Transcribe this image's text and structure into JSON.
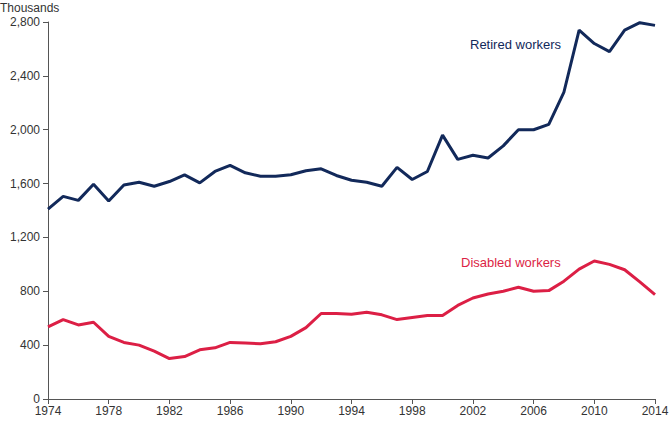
{
  "chart_data": {
    "type": "line",
    "ylabel": "Thousands",
    "x": [
      1974,
      1975,
      1976,
      1977,
      1978,
      1979,
      1980,
      1981,
      1982,
      1983,
      1984,
      1985,
      1986,
      1987,
      1988,
      1989,
      1990,
      1991,
      1992,
      1993,
      1994,
      1995,
      1996,
      1997,
      1998,
      1999,
      2000,
      2001,
      2002,
      2003,
      2004,
      2005,
      2006,
      2007,
      2008,
      2009,
      2010,
      2011,
      2012,
      2013,
      2014
    ],
    "series": [
      {
        "name": "Retired workers",
        "color": "#12295a",
        "values": [
          1410,
          1505,
          1475,
          1595,
          1470,
          1590,
          1610,
          1580,
          1615,
          1665,
          1605,
          1690,
          1735,
          1680,
          1655,
          1655,
          1665,
          1695,
          1710,
          1660,
          1625,
          1610,
          1580,
          1720,
          1630,
          1690,
          1960,
          1780,
          1810,
          1790,
          1880,
          2000,
          2000,
          2040,
          2280,
          2740,
          2640,
          2580,
          2740,
          2795,
          2775
        ]
      },
      {
        "name": "Disabled workers",
        "color": "#dc1f45",
        "values": [
          535,
          590,
          550,
          570,
          465,
          420,
          400,
          355,
          300,
          315,
          365,
          380,
          420,
          415,
          410,
          425,
          465,
          530,
          635,
          635,
          630,
          645,
          625,
          590,
          605,
          620,
          620,
          695,
          750,
          780,
          800,
          830,
          800,
          805,
          875,
          965,
          1025,
          1000,
          960,
          870,
          775
        ]
      }
    ],
    "xlim": [
      1974,
      2014
    ],
    "xticks": [
      1974,
      1978,
      1982,
      1986,
      1990,
      1994,
      1998,
      2002,
      2006,
      2010,
      2014
    ],
    "ylim": [
      0,
      2800
    ],
    "yticks": [
      0,
      400,
      800,
      {
        "value": 1200,
        "label": "1,200"
      },
      {
        "value": 1600,
        "label": "1,600"
      },
      {
        "value": 2000,
        "label": "2,000"
      },
      {
        "value": 2400,
        "label": "2,400"
      },
      {
        "value": 2800,
        "label": "2,800"
      }
    ],
    "grid": false
  }
}
